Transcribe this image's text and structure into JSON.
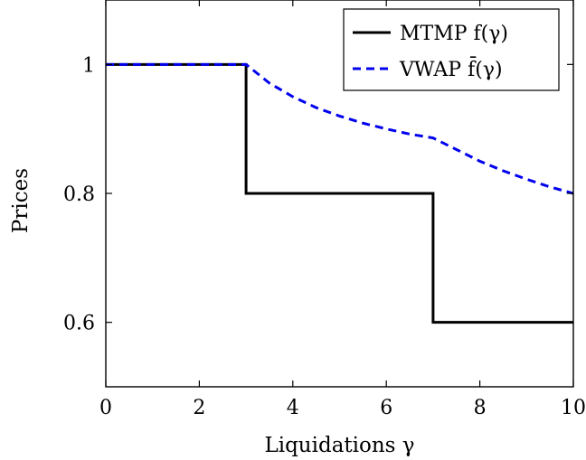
{
  "chart_data": {
    "type": "line",
    "xlabel": "Liquidations γ",
    "ylabel": "Prices",
    "xlim": [
      0,
      10
    ],
    "ylim": [
      0.5,
      1.1
    ],
    "x_ticks": [
      0,
      2,
      4,
      6,
      8,
      10
    ],
    "x_tick_labels": [
      "0",
      "2",
      "4",
      "6",
      "8",
      "10"
    ],
    "y_ticks": [
      0.6,
      0.8,
      1.0
    ],
    "y_tick_labels": [
      "0.6",
      "0.8",
      "1"
    ],
    "grid": false,
    "legend_position": "top-right",
    "series": [
      {
        "name": "MTMP f(γ)",
        "color": "#000000",
        "style": "solid",
        "x": [
          0,
          3,
          3,
          7,
          7,
          10
        ],
        "y": [
          1.0,
          1.0,
          0.8,
          0.8,
          0.6,
          0.6
        ]
      },
      {
        "name": "VWAP f̄(γ)",
        "color": "#0000ee",
        "style": "dashed",
        "x": [
          0,
          3,
          3.5,
          4,
          4.5,
          5,
          5.5,
          6,
          6.5,
          7,
          7.5,
          8,
          8.5,
          9,
          9.5,
          10
        ],
        "y": [
          1.0,
          1.0,
          0.971,
          0.95,
          0.933,
          0.92,
          0.909,
          0.9,
          0.892,
          0.886,
          0.868,
          0.85,
          0.835,
          0.822,
          0.81,
          0.8
        ]
      }
    ]
  }
}
